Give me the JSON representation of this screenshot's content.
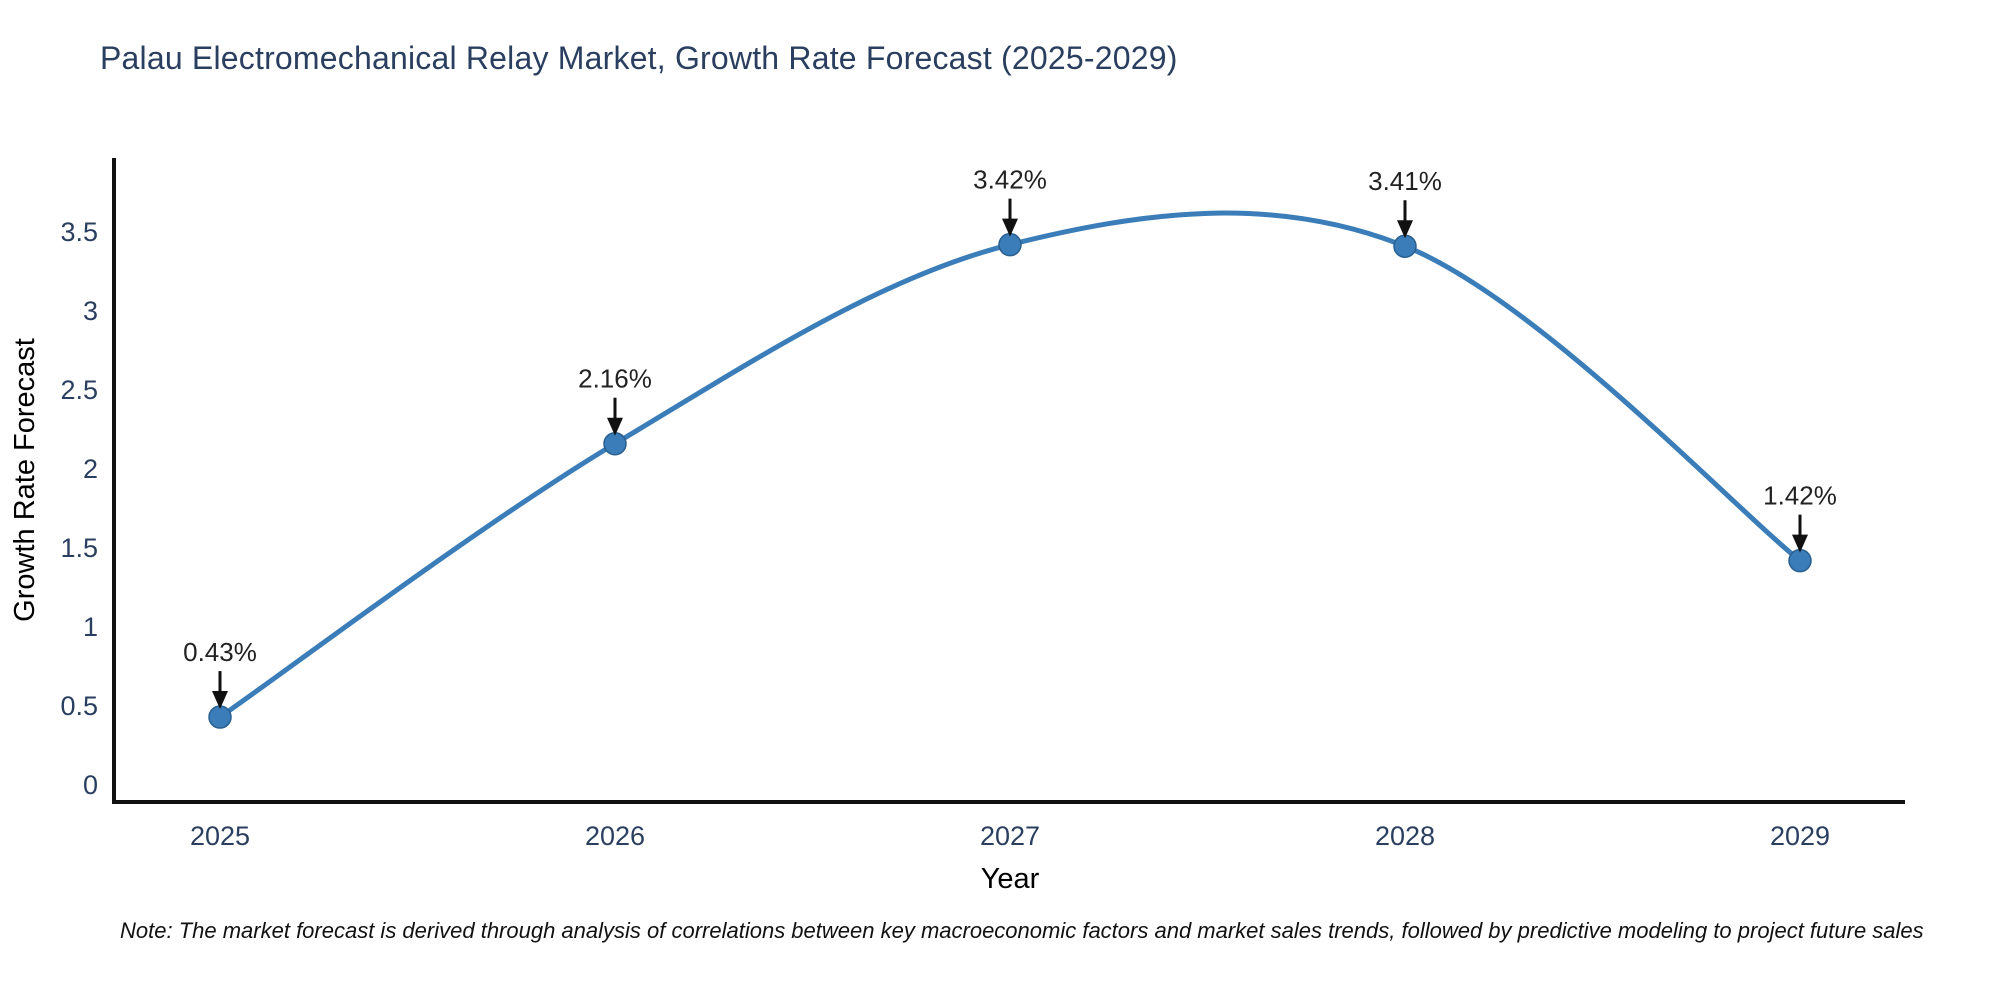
{
  "footnote": {
    "text": "Note: The market forecast is derived through analysis of correlations between key macroeconomic factors and market sales trends, followed by predictive modeling to project future sales"
  },
  "chart_data": {
    "type": "line",
    "title": "Palau Electromechanical Relay Market, Growth Rate Forecast (2025-2029)",
    "xlabel": "Year",
    "ylabel": "Growth Rate Forecast",
    "categories": [
      "2025",
      "2026",
      "2027",
      "2028",
      "2029"
    ],
    "values": [
      0.43,
      2.16,
      3.42,
      3.41,
      1.42
    ],
    "point_labels": [
      "0.43%",
      "2.16%",
      "3.42%",
      "3.41%",
      "1.42%"
    ],
    "ytick_values": [
      0,
      0.5,
      1,
      1.5,
      2,
      2.5,
      3,
      3.5
    ],
    "ytick_labels": [
      "0",
      "0.5",
      "1",
      "1.5",
      "2",
      "2.5",
      "3",
      "3.5"
    ],
    "ylim": [
      0,
      3.95
    ],
    "grid": false,
    "legend": "none",
    "line_style": "spline-smoothed",
    "marker": "circle",
    "annotation_arrows": "down-to-point",
    "colors": {
      "line": "#3a7db8",
      "marker": "#3a7db8",
      "marker_edge": "#2a5f8f",
      "arrow": "#111111",
      "spine": "#111111",
      "axis_text": "#2a3f5f",
      "annotation_text": "#222222"
    }
  }
}
